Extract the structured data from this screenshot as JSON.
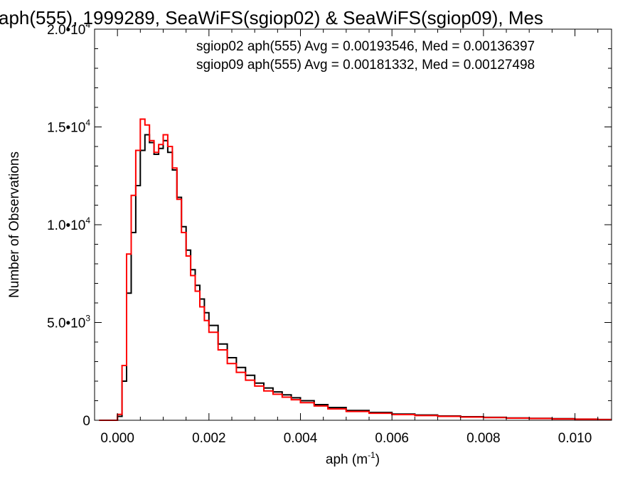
{
  "chart_data": {
    "type": "line",
    "title": "aph(555), 1999289, SeaWiFS(sgiop02) & SeaWiFS(sgiop09), Mes",
    "xlabel_base": "aph (m",
    "xlabel_sup": "-1",
    "xlabel_end": ")",
    "ylabel": "Number of Observations",
    "xlim": [
      -0.0005,
      0.0108
    ],
    "ylim": [
      0,
      20000
    ],
    "grid": false,
    "x_ticks": [
      {
        "value": 0.0,
        "label": "0.000"
      },
      {
        "value": 0.002,
        "label": "0.002"
      },
      {
        "value": 0.004,
        "label": "0.004"
      },
      {
        "value": 0.006,
        "label": "0.006"
      },
      {
        "value": 0.008,
        "label": "0.008"
      },
      {
        "value": 0.01,
        "label": "0.010"
      }
    ],
    "y_ticks": [
      {
        "value": 0,
        "mant": "0",
        "exp": ""
      },
      {
        "value": 5000,
        "mant": "5.0•10",
        "exp": "3"
      },
      {
        "value": 10000,
        "mant": "1.0•10",
        "exp": "4"
      },
      {
        "value": 15000,
        "mant": "1.5•10",
        "exp": "4"
      },
      {
        "value": 20000,
        "mant": "2.0•10",
        "exp": "4"
      }
    ],
    "annotations": [
      "sgiop02 aph(555) Avg = 0.00193546, Med = 0.00136397",
      "sgiop09 aph(555) Avg = 0.00181332, Med = 0.00127498"
    ],
    "series": [
      {
        "key": "sgiop02",
        "color": "#000000",
        "x": [
          -0.0004,
          0.0,
          0.0001,
          0.0002,
          0.0003,
          0.0004,
          0.0005,
          0.0006,
          0.0007,
          0.0008,
          0.0009,
          0.001,
          0.0011,
          0.0012,
          0.0013,
          0.0014,
          0.0015,
          0.0016,
          0.0017,
          0.0018,
          0.0019,
          0.002,
          0.0022,
          0.0024,
          0.0026,
          0.0028,
          0.003,
          0.0032,
          0.0034,
          0.0036,
          0.0038,
          0.004,
          0.0043,
          0.0046,
          0.005,
          0.0055,
          0.006,
          0.0065,
          0.007,
          0.0075,
          0.008,
          0.0085,
          0.009,
          0.0095,
          0.01,
          0.0105
        ],
        "y": [
          0,
          200,
          2000,
          6500,
          9600,
          12000,
          13800,
          14600,
          14200,
          13600,
          13900,
          14300,
          13700,
          12800,
          11400,
          9900,
          8700,
          7700,
          6900,
          6200,
          5500,
          4850,
          3900,
          3200,
          2700,
          2300,
          1900,
          1650,
          1450,
          1300,
          1150,
          1000,
          800,
          650,
          500,
          400,
          320,
          270,
          220,
          180,
          150,
          120,
          100,
          80,
          60,
          40
        ]
      },
      {
        "key": "sgiop09",
        "color": "#ff0000",
        "x": [
          -0.0004,
          0.0,
          0.0001,
          0.0002,
          0.0003,
          0.0004,
          0.0005,
          0.0006,
          0.0007,
          0.0008,
          0.0009,
          0.001,
          0.0011,
          0.0012,
          0.0013,
          0.0014,
          0.0015,
          0.0016,
          0.0017,
          0.0018,
          0.0019,
          0.002,
          0.0022,
          0.0024,
          0.0026,
          0.0028,
          0.003,
          0.0032,
          0.0034,
          0.0036,
          0.0038,
          0.004,
          0.0043,
          0.0046,
          0.005,
          0.0055,
          0.006,
          0.0065,
          0.007,
          0.0075,
          0.008,
          0.0085,
          0.009,
          0.0095,
          0.01,
          0.0105
        ],
        "y": [
          0,
          300,
          2800,
          8500,
          11500,
          13800,
          15400,
          15100,
          14300,
          13700,
          14100,
          14600,
          14000,
          12900,
          11300,
          9600,
          8400,
          7400,
          6600,
          5800,
          5100,
          4500,
          3600,
          2900,
          2450,
          2050,
          1750,
          1500,
          1330,
          1180,
          1050,
          900,
          730,
          580,
          450,
          360,
          290,
          240,
          200,
          165,
          135,
          110,
          90,
          70,
          55,
          35
        ]
      }
    ]
  }
}
